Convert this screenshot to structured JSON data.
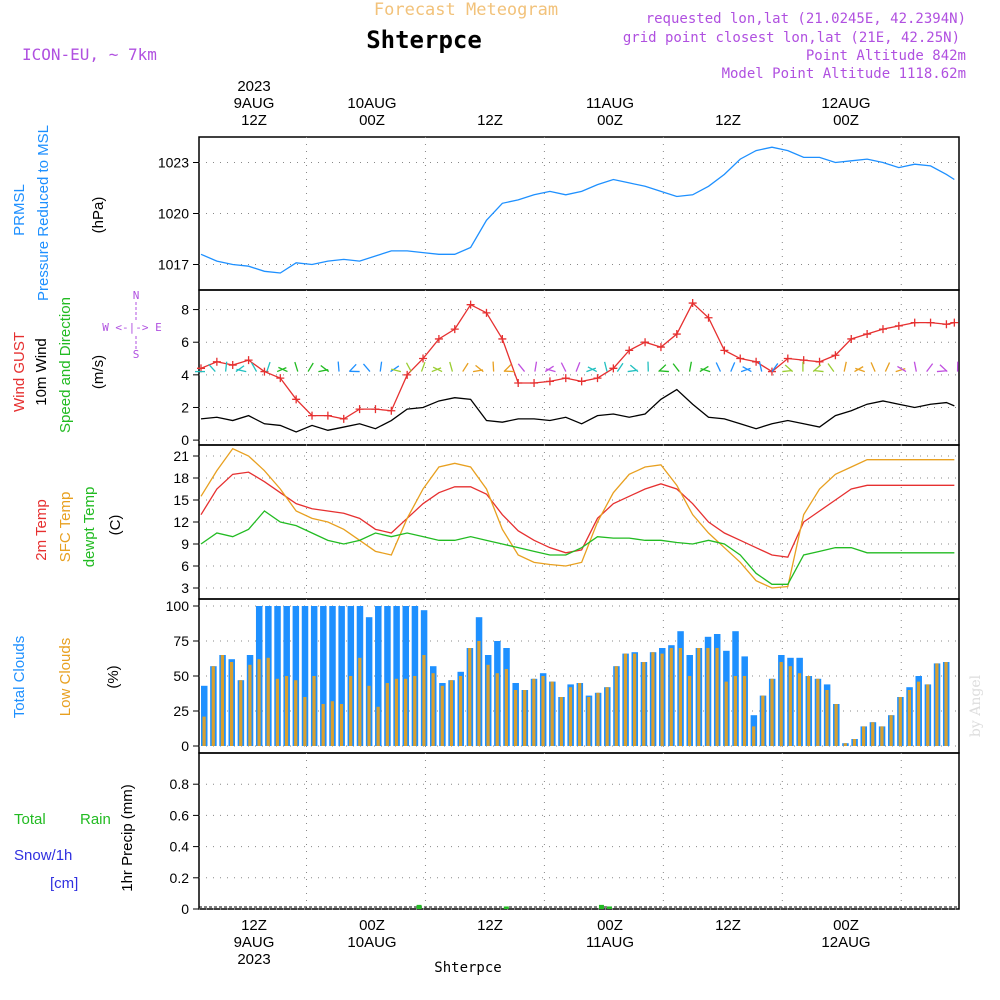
{
  "header": {
    "forecast_title": "Forecast Meteogram",
    "station": "Shterpce",
    "model": "ICON-EU, ~ 7km",
    "requested": "requested lon,lat (21.0245E, 42.2394N)",
    "grid_point": "grid point closest lon,lat (21E, 42.25N)",
    "point_altitude": "Point Altitude 842m",
    "model_altitude": "Model Point Altitude 1118.62m",
    "watermark": "by Angel",
    "footer_station": "Shterpce"
  },
  "time_axis": {
    "top": [
      {
        "lines": [
          "2023",
          "9AUG",
          "12Z"
        ]
      },
      {
        "lines": [
          "10AUG",
          "00Z"
        ]
      },
      {
        "lines": [
          "12Z"
        ]
      },
      {
        "lines": [
          "11AUG",
          "00Z"
        ]
      },
      {
        "lines": [
          "12Z"
        ]
      },
      {
        "lines": [
          "12AUG",
          "00Z"
        ]
      }
    ],
    "bottom": [
      {
        "lines": [
          "12Z",
          "9AUG",
          "2023"
        ]
      },
      {
        "lines": [
          "00Z",
          "10AUG"
        ]
      },
      {
        "lines": [
          "12Z"
        ]
      },
      {
        "lines": [
          "00Z",
          "11AUG"
        ]
      },
      {
        "lines": [
          "12Z"
        ]
      },
      {
        "lines": [
          "00Z",
          "12AUG"
        ]
      }
    ]
  },
  "panels": {
    "pressure": {
      "label1": "PRMSL",
      "label2": "Pressure Reduced to MSL",
      "unit": "(hPa)"
    },
    "wind": {
      "label_gust": "Wind GUST",
      "label_wind": "10m Wind",
      "label_dir": "Speed and Direction",
      "unit": "(m/s)",
      "compass_n": "N",
      "compass_s": "S",
      "compass_we": "W <-|-> E"
    },
    "temp": {
      "label_2m": "2m Temp",
      "label_sfc": "SFC Temp",
      "label_dew": "dewpt Temp",
      "unit": "(C)"
    },
    "clouds": {
      "label_total": "Total Clouds",
      "label_low": "Low Clouds",
      "unit": "(%)"
    },
    "precip": {
      "label_total": "Total",
      "label_rain": "Rain",
      "label_snow": "Snow/1h",
      "label_cm": "[cm]",
      "unit": "1hr Precip (mm)"
    }
  },
  "chart_data": [
    {
      "type": "line",
      "title": "PRMSL",
      "ylabel": "(hPa)",
      "ylim": [
        1015.5,
        1024.5
      ],
      "yticks": [
        1017,
        1020,
        1023
      ],
      "x_hours": [
        0,
        2,
        4,
        6,
        8,
        10,
        12,
        14,
        16,
        18,
        20,
        22,
        24,
        26,
        28,
        30,
        32,
        34,
        36,
        38,
        40,
        42,
        44,
        46,
        48,
        50,
        52,
        54,
        56,
        58,
        60,
        62,
        64,
        66,
        68,
        70,
        72,
        74,
        76,
        78,
        80,
        82,
        84,
        86,
        88,
        90,
        92,
        94,
        95
      ],
      "series": [
        {
          "name": "PRMSL",
          "color": "#1e90ff",
          "values": [
            1017.6,
            1017.2,
            1017.0,
            1016.9,
            1016.6,
            1016.5,
            1017.1,
            1017.0,
            1017.2,
            1017.3,
            1017.2,
            1017.5,
            1017.8,
            1017.8,
            1017.7,
            1017.6,
            1017.6,
            1018.0,
            1019.6,
            1020.6,
            1020.8,
            1021.1,
            1021.3,
            1021.1,
            1021.3,
            1021.7,
            1022.0,
            1021.8,
            1021.6,
            1021.3,
            1021.0,
            1021.1,
            1021.6,
            1022.3,
            1023.2,
            1023.7,
            1023.9,
            1023.7,
            1023.3,
            1023.3,
            1023.0,
            1023.1,
            1023.2,
            1023.0,
            1022.7,
            1022.9,
            1022.8,
            1022.3,
            1022.0
          ]
        }
      ]
    },
    {
      "type": "line",
      "title": "Wind",
      "ylabel": "(m/s)",
      "ylim": [
        -0.3,
        9.2
      ],
      "yticks": [
        0,
        2,
        4,
        6,
        8
      ],
      "x_hours": [
        0,
        2,
        4,
        6,
        8,
        10,
        12,
        14,
        16,
        18,
        20,
        22,
        24,
        26,
        28,
        30,
        32,
        34,
        36,
        38,
        40,
        42,
        44,
        46,
        48,
        50,
        52,
        54,
        56,
        58,
        60,
        62,
        64,
        66,
        68,
        70,
        72,
        74,
        76,
        78,
        80,
        82,
        84,
        86,
        88,
        90,
        92,
        94,
        95
      ],
      "series": [
        {
          "name": "Wind GUST",
          "color": "#e63030",
          "values": [
            4.4,
            4.8,
            4.6,
            4.9,
            4.2,
            3.8,
            2.5,
            1.5,
            1.5,
            1.3,
            1.9,
            1.9,
            1.8,
            4.0,
            5.0,
            6.2,
            6.8,
            8.3,
            7.8,
            6.2,
            3.5,
            3.5,
            3.6,
            3.8,
            3.6,
            3.8,
            4.4,
            5.5,
            6.0,
            5.7,
            6.5,
            8.4,
            7.5,
            5.5,
            5.0,
            4.8,
            4.2,
            5.0,
            4.9,
            4.8,
            5.2,
            6.2,
            6.5,
            6.8,
            7.0,
            7.2,
            7.2,
            7.1,
            7.2
          ]
        },
        {
          "name": "10m Wind",
          "color": "#000000",
          "values": [
            1.3,
            1.4,
            1.2,
            1.5,
            1.0,
            0.9,
            0.5,
            0.9,
            0.6,
            0.8,
            1.0,
            0.7,
            1.2,
            1.9,
            2.0,
            2.4,
            2.6,
            2.5,
            1.2,
            1.1,
            1.3,
            1.3,
            1.2,
            1.4,
            1.0,
            1.5,
            1.6,
            1.4,
            1.6,
            2.5,
            3.1,
            2.2,
            1.4,
            1.3,
            1.0,
            0.7,
            1.0,
            1.2,
            1.0,
            0.8,
            1.5,
            1.8,
            2.2,
            2.4,
            2.2,
            2.0,
            2.2,
            2.3,
            2.1
          ]
        }
      ]
    },
    {
      "type": "line",
      "title": "Temperature",
      "ylabel": "(C)",
      "ylim": [
        1.5,
        22.5
      ],
      "yticks": [
        3,
        6,
        9,
        12,
        15,
        18,
        21
      ],
      "x_hours": [
        0,
        2,
        4,
        6,
        8,
        10,
        12,
        14,
        16,
        18,
        20,
        22,
        24,
        26,
        28,
        30,
        32,
        34,
        36,
        38,
        40,
        42,
        44,
        46,
        48,
        50,
        52,
        54,
        56,
        58,
        60,
        62,
        64,
        66,
        68,
        70,
        72,
        74,
        76,
        78,
        80,
        82,
        84,
        86,
        88,
        90,
        92,
        94,
        95
      ],
      "series": [
        {
          "name": "2m Temp",
          "color": "#e63030",
          "values": [
            13.0,
            16.5,
            18.5,
            18.8,
            17.5,
            16.0,
            14.5,
            13.8,
            13.5,
            13.2,
            12.5,
            11.0,
            10.5,
            12.5,
            14.5,
            16.0,
            16.8,
            16.8,
            15.8,
            13.0,
            10.8,
            9.5,
            8.5,
            7.8,
            8.2,
            12.5,
            14.5,
            15.5,
            16.5,
            17.2,
            16.5,
            14.5,
            12.0,
            10.5,
            9.5,
            8.5,
            7.5,
            7.2,
            12.0,
            13.5,
            15.0,
            16.5,
            17.0,
            17.0,
            17.0,
            17.0,
            17.0,
            17.0,
            17.0
          ]
        },
        {
          "name": "SFC Temp",
          "color": "#e8a020",
          "values": [
            15.5,
            19.0,
            22.0,
            21.0,
            19.0,
            16.5,
            13.5,
            12.5,
            12.0,
            11.0,
            9.5,
            8.0,
            7.5,
            12.5,
            16.5,
            19.5,
            20.0,
            19.5,
            16.5,
            11.0,
            7.5,
            6.5,
            6.2,
            6.0,
            6.5,
            12.0,
            16.0,
            18.5,
            19.5,
            19.8,
            17.0,
            13.0,
            10.5,
            8.5,
            6.5,
            4.0,
            3.0,
            3.2,
            13.0,
            16.5,
            18.5,
            19.5,
            20.5,
            20.5,
            20.5,
            20.5,
            20.5,
            20.5,
            20.5
          ]
        },
        {
          "name": "dewpt Temp",
          "color": "#22bb22",
          "values": [
            9.0,
            10.5,
            10.0,
            11.0,
            13.5,
            12.0,
            11.5,
            10.5,
            9.5,
            9.0,
            9.5,
            10.5,
            10.0,
            10.5,
            10.0,
            9.5,
            9.5,
            10.0,
            9.5,
            9.0,
            8.5,
            8.0,
            7.5,
            7.5,
            8.5,
            10.0,
            9.8,
            9.8,
            9.5,
            9.5,
            9.2,
            9.0,
            9.5,
            9.0,
            7.5,
            5.0,
            3.5,
            3.5,
            7.5,
            8.0,
            8.5,
            8.5,
            7.8,
            7.8,
            7.8,
            7.8,
            7.8,
            7.8,
            7.8
          ]
        }
      ]
    },
    {
      "type": "bar",
      "title": "Clouds",
      "ylabel": "(%)",
      "ylim": [
        -5,
        105
      ],
      "yticks": [
        0,
        25,
        50,
        75,
        100
      ],
      "x_hours_start": 0,
      "series": [
        {
          "name": "Total Clouds",
          "color": "#1e90ff",
          "values": [
            43,
            57,
            65,
            62,
            47,
            65,
            100,
            100,
            100,
            100,
            100,
            100,
            100,
            100,
            100,
            100,
            100,
            100,
            92,
            100,
            100,
            100,
            100,
            100,
            97,
            57,
            45,
            47,
            53,
            70,
            92,
            65,
            75,
            70,
            45,
            40,
            48,
            52,
            46,
            35,
            44,
            45,
            36,
            38,
            42,
            57,
            66,
            67,
            60,
            67,
            70,
            72,
            82,
            65,
            70,
            78,
            80,
            68,
            82,
            64,
            22,
            36,
            48,
            65,
            63,
            63,
            50,
            48,
            44,
            30,
            2,
            5,
            14,
            17,
            14,
            22,
            35,
            42,
            50,
            44,
            59,
            60
          ]
        },
        {
          "name": "Low Clouds",
          "color": "#d8a030",
          "values": [
            21,
            57,
            65,
            60,
            47,
            58,
            62,
            63,
            48,
            50,
            47,
            35,
            50,
            30,
            32,
            30,
            50,
            63,
            43,
            28,
            45,
            48,
            48,
            50,
            65,
            52,
            43,
            47,
            50,
            70,
            75,
            58,
            52,
            55,
            40,
            40,
            48,
            50,
            46,
            35,
            42,
            45,
            35,
            38,
            42,
            57,
            66,
            66,
            60,
            67,
            66,
            70,
            70,
            50,
            70,
            70,
            70,
            46,
            50,
            50,
            14,
            36,
            48,
            60,
            57,
            52,
            50,
            48,
            40,
            30,
            2,
            5,
            14,
            17,
            14,
            22,
            35,
            40,
            46,
            44,
            59,
            60
          ]
        }
      ]
    },
    {
      "type": "bar",
      "title": "1hr Precip",
      "ylabel": "1hr Precip (mm)",
      "ylim": [
        0,
        1
      ],
      "yticks": [
        0,
        0.2,
        0.4,
        0.6,
        0.8
      ],
      "series": [
        {
          "name": "Total Rain",
          "color": "#22bb22",
          "points": [
            [
              27.5,
              0.02
            ],
            [
              38.5,
              0.01
            ],
            [
              50.5,
              0.02
            ],
            [
              51.5,
              0.01
            ]
          ]
        }
      ]
    }
  ]
}
